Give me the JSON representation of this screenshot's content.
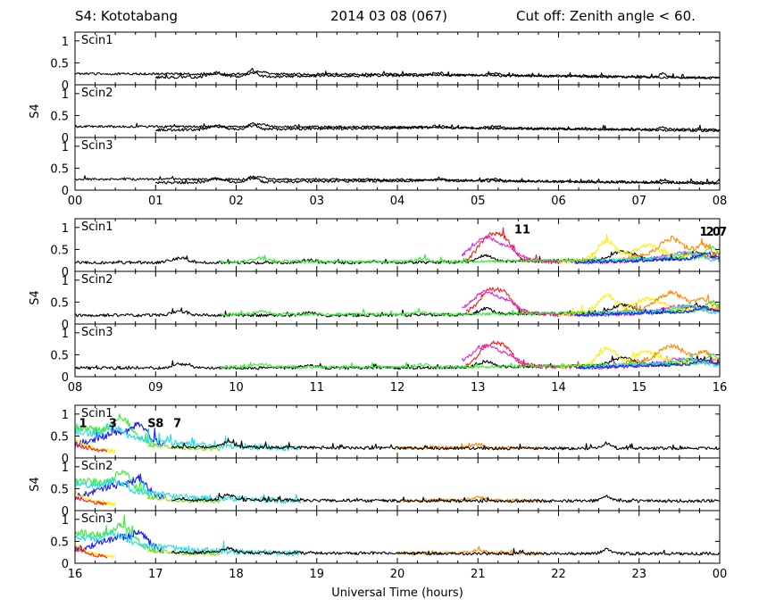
{
  "header": {
    "station": "S4: Kototabang",
    "date": "2014 03 08 (067)",
    "cutoff": "Cut off: Zenith angle < 60."
  },
  "chart_data": {
    "type": "line",
    "xlabel": "Universal Time (hours)",
    "ylabel": "S4",
    "ylim": [
      0,
      1.2
    ],
    "ytick_labels": [
      "0",
      "0.5",
      "1"
    ],
    "panel_labels": [
      "Scin1",
      "Scin2",
      "Scin3"
    ],
    "grid": false,
    "groups": [
      {
        "xticks": [
          "00",
          "01",
          "02",
          "03",
          "04",
          "05",
          "06",
          "07",
          "08"
        ],
        "x_range": [
          0,
          8
        ],
        "satellite_labels": [],
        "series": [
          {
            "color": "#000000",
            "start": 1.0,
            "end": 8.0,
            "base": [
              0.17,
              0.22,
              0.17
            ],
            "noise": 0.03,
            "bursts": [
              [
                1.75,
                0.1,
                0.12
              ],
              [
                2.2,
                0.14,
                0.08
              ],
              [
                4.5,
                0.06,
                0.08
              ],
              [
                7.3,
                0.07,
                0.06
              ]
            ]
          },
          {
            "color": "#000000",
            "start": 0.0,
            "end": 8.0,
            "base": [
              0.25,
              0.24,
              0.15
            ],
            "noise": 0.025,
            "bursts": [
              [
                2.3,
                0.06,
                0.1
              ],
              [
                5.2,
                0.05,
                0.1
              ]
            ]
          }
        ]
      },
      {
        "xticks": [
          "08",
          "09",
          "10",
          "11",
          "12",
          "13",
          "14",
          "15",
          "16"
        ],
        "x_range": [
          8,
          16
        ],
        "satellite_labels": [
          {
            "text": "11",
            "x": 13.45,
            "y": 0.95,
            "color": "#e020e0"
          },
          {
            "text": "1",
            "x": 15.75,
            "y": 0.9,
            "color": "#ff1a1a"
          },
          {
            "text": "2",
            "x": 15.83,
            "y": 0.9,
            "color": "#ff9900"
          },
          {
            "text": "0",
            "x": 15.91,
            "y": 0.9,
            "color": "#33dd33"
          },
          {
            "text": "7",
            "x": 15.99,
            "y": 0.9,
            "color": "#ff9900"
          }
        ],
        "series": [
          {
            "color": "#000000",
            "start": 8.0,
            "end": 16.0,
            "base": [
              0.2,
              0.2,
              0.28
            ],
            "noise": 0.035,
            "bursts": [
              [
                9.3,
                0.1,
                0.14
              ],
              [
                10.9,
                0.06,
                0.12
              ],
              [
                13.1,
                0.15,
                0.12
              ],
              [
                14.8,
                0.2,
                0.2
              ],
              [
                15.7,
                0.15,
                0.2
              ]
            ]
          },
          {
            "color": "#ff1a1a",
            "start": 12.85,
            "end": 14.0,
            "base": [
              0.25,
              0.3,
              0.2
            ],
            "noise": 0.05,
            "bursts": [
              [
                13.15,
                0.55,
                0.18
              ],
              [
                13.35,
                0.3,
                0.12
              ]
            ]
          },
          {
            "color": "#e020e0",
            "start": 12.8,
            "end": 16.0,
            "base": [
              0.3,
              0.2,
              0.3
            ],
            "noise": 0.04,
            "bursts": [
              [
                13.1,
                0.5,
                0.22
              ],
              [
                13.4,
                0.2,
                0.15
              ],
              [
                15.5,
                0.15,
                0.3
              ]
            ]
          },
          {
            "color": "#ffee00",
            "start": 14.0,
            "end": 16.0,
            "base": [
              0.22,
              0.35,
              0.35
            ],
            "noise": 0.05,
            "bursts": [
              [
                14.6,
                0.4,
                0.15
              ],
              [
                15.1,
                0.25,
                0.2
              ]
            ]
          },
          {
            "color": "#ff8800",
            "start": 14.8,
            "end": 16.0,
            "base": [
              0.3,
              0.45,
              0.35
            ],
            "noise": 0.06,
            "bursts": [
              [
                15.4,
                0.3,
                0.2
              ],
              [
                15.8,
                0.2,
                0.12
              ]
            ]
          },
          {
            "color": "#33ee33",
            "start": 9.8,
            "end": 16.0,
            "base": [
              0.22,
              0.22,
              0.3
            ],
            "noise": 0.035,
            "bursts": [
              [
                10.3,
                0.08,
                0.12
              ],
              [
                12.3,
                0.06,
                0.12
              ],
              [
                15.9,
                0.25,
                0.1
              ]
            ]
          },
          {
            "color": "#22dddd",
            "start": 14.3,
            "end": 16.0,
            "base": [
              0.2,
              0.3,
              0.25
            ],
            "noise": 0.04,
            "bursts": [
              [
                15.6,
                0.15,
                0.2
              ]
            ]
          },
          {
            "color": "#1a1aff",
            "start": 14.2,
            "end": 16.0,
            "base": [
              0.2,
              0.25,
              0.3
            ],
            "noise": 0.035,
            "bursts": [
              [
                15.8,
                0.1,
                0.12
              ]
            ]
          }
        ]
      },
      {
        "xticks": [
          "16",
          "17",
          "18",
          "19",
          "20",
          "21",
          "22",
          "23",
          "00"
        ],
        "x_range": [
          16,
          24
        ],
        "satellite_labels": [
          {
            "text": "1",
            "x": 16.05,
            "y": 0.78,
            "color": "#ffee00"
          },
          {
            "text": "3",
            "x": 16.42,
            "y": 0.78,
            "color": "#33dd33"
          },
          {
            "text": "S",
            "x": 16.9,
            "y": 0.78,
            "color": "#1a1aff"
          },
          {
            "text": "8",
            "x": 17.0,
            "y": 0.78,
            "color": "#22bbee"
          },
          {
            "text": "7",
            "x": 17.22,
            "y": 0.78,
            "color": "#33dd33"
          }
        ],
        "series": [
          {
            "color": "#33ee33",
            "start": 16.0,
            "end": 17.0,
            "base": [
              0.7,
              0.6,
              0.3
            ],
            "noise": 0.08,
            "bursts": [
              [
                16.6,
                0.35,
                0.15
              ]
            ]
          },
          {
            "color": "#1a1aff",
            "start": 16.0,
            "end": 17.1,
            "base": [
              0.3,
              0.6,
              0.3
            ],
            "noise": 0.08,
            "bursts": [
              [
                16.8,
                0.3,
                0.12
              ]
            ]
          },
          {
            "color": "#22dddd",
            "start": 16.0,
            "end": 18.8,
            "base": [
              0.6,
              0.3,
              0.22
            ],
            "noise": 0.07,
            "bursts": [
              [
                16.5,
                0.2,
                0.15
              ]
            ]
          },
          {
            "color": "#ffee00",
            "start": 16.0,
            "end": 16.5,
            "base": [
              0.4,
              0.2,
              0.15
            ],
            "noise": 0.05,
            "bursts": []
          },
          {
            "color": "#ff1a1a",
            "start": 16.0,
            "end": 16.4,
            "base": [
              0.3,
              0.2,
              0.15
            ],
            "noise": 0.04,
            "bursts": []
          },
          {
            "color": "#88dd22",
            "start": 16.9,
            "end": 17.8,
            "base": [
              0.3,
              0.22,
              0.2
            ],
            "noise": 0.04,
            "bursts": []
          },
          {
            "color": "#ff8800",
            "start": 20.0,
            "end": 21.8,
            "base": [
              0.22,
              0.24,
              0.22
            ],
            "noise": 0.035,
            "bursts": [
              [
                21.0,
                0.08,
                0.1
              ]
            ]
          },
          {
            "color": "#000000",
            "start": 17.2,
            "end": 24.0,
            "base": [
              0.25,
              0.22,
              0.22
            ],
            "noise": 0.035,
            "bursts": [
              [
                17.9,
                0.12,
                0.1
              ],
              [
                22.6,
                0.12,
                0.08
              ]
            ]
          }
        ]
      }
    ]
  }
}
